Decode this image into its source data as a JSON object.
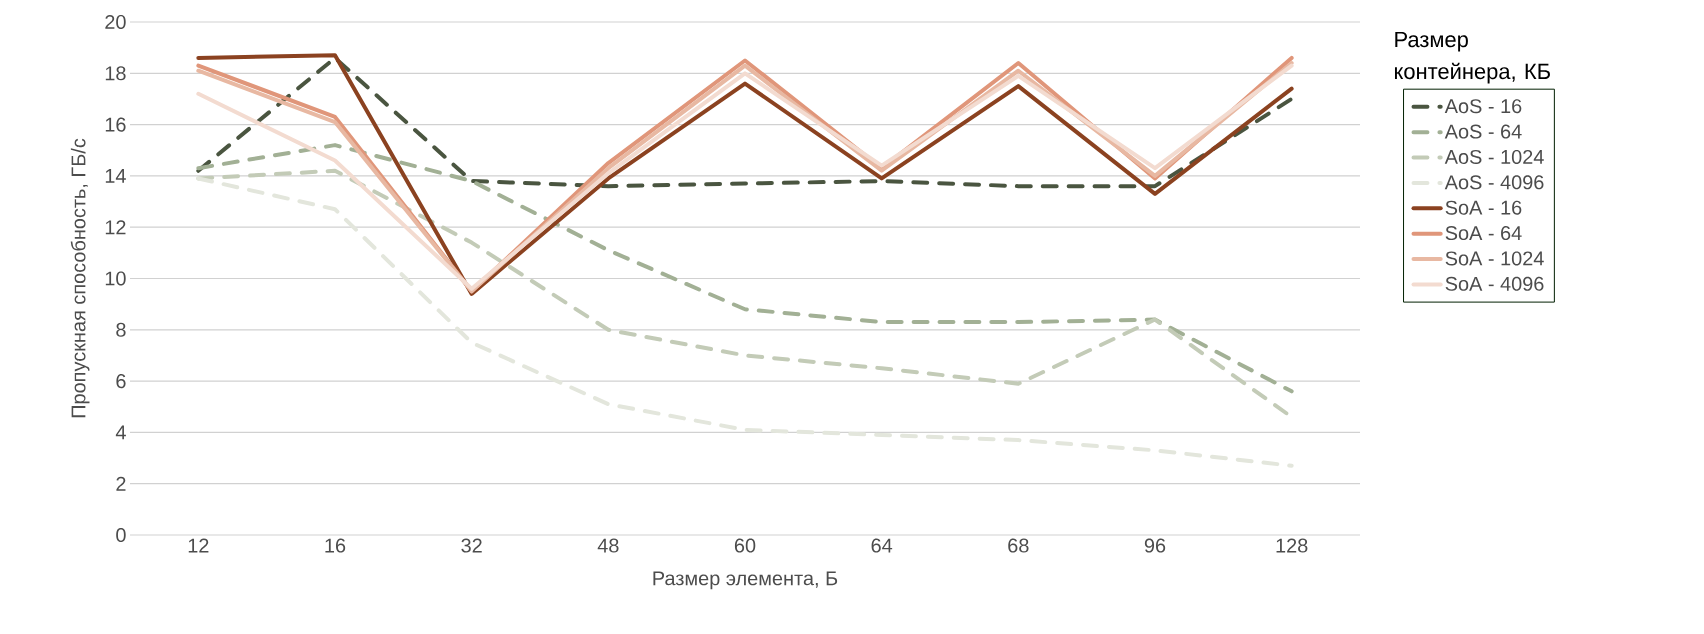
{
  "chart_data": {
    "type": "line",
    "xlabel": "Размер элемента, Б",
    "ylabel": "Пропускная способность, ГБ/с",
    "legend_title": "Размер контейнера, КБ",
    "categories": [
      "12",
      "16",
      "32",
      "48",
      "60",
      "64",
      "68",
      "96",
      "128"
    ],
    "ylim": [
      0,
      20
    ],
    "yticks": [
      0,
      2,
      4,
      6,
      8,
      10,
      12,
      14,
      16,
      18,
      20
    ],
    "grid": "y",
    "legend": "right",
    "series": [
      {
        "name": "AoS - 16",
        "color": "#4a5540",
        "line_style": "dashed",
        "values": [
          14.2,
          18.6,
          13.8,
          13.6,
          13.7,
          13.8,
          13.6,
          13.6,
          17.0
        ]
      },
      {
        "name": "AoS - 64",
        "color": "#a2b095",
        "line_style": "dashed",
        "values": [
          14.3,
          15.2,
          13.8,
          11.1,
          8.8,
          8.3,
          8.3,
          8.4,
          5.6
        ]
      },
      {
        "name": "AoS - 1024",
        "color": "#c3cbb7",
        "line_style": "dashed",
        "values": [
          13.9,
          14.2,
          11.4,
          8.0,
          7.0,
          6.5,
          5.9,
          8.4,
          4.6
        ]
      },
      {
        "name": "AoS - 4096",
        "color": "#e3e6dc",
        "line_style": "dashed",
        "values": [
          13.9,
          12.7,
          7.5,
          5.1,
          4.1,
          3.9,
          3.7,
          3.3,
          2.7
        ]
      },
      {
        "name": "SoA - 16",
        "color": "#8b4220",
        "line_style": "solid",
        "values": [
          18.6,
          18.7,
          9.4,
          13.9,
          17.6,
          13.9,
          17.5,
          13.3,
          17.4
        ]
      },
      {
        "name": "SoA - 64",
        "color": "#e0967a",
        "line_style": "solid",
        "values": [
          18.3,
          16.3,
          9.5,
          14.5,
          18.5,
          14.3,
          18.4,
          13.9,
          18.6
        ]
      },
      {
        "name": "SoA - 1024",
        "color": "#e8b8a2",
        "line_style": "solid",
        "values": [
          18.1,
          16.1,
          9.5,
          14.3,
          18.3,
          14.2,
          18.1,
          14.0,
          18.4
        ]
      },
      {
        "name": "SoA - 4096",
        "color": "#f3dbd0",
        "line_style": "solid",
        "values": [
          17.2,
          14.6,
          9.6,
          14.1,
          18.0,
          14.4,
          17.9,
          14.3,
          18.3
        ]
      }
    ]
  }
}
